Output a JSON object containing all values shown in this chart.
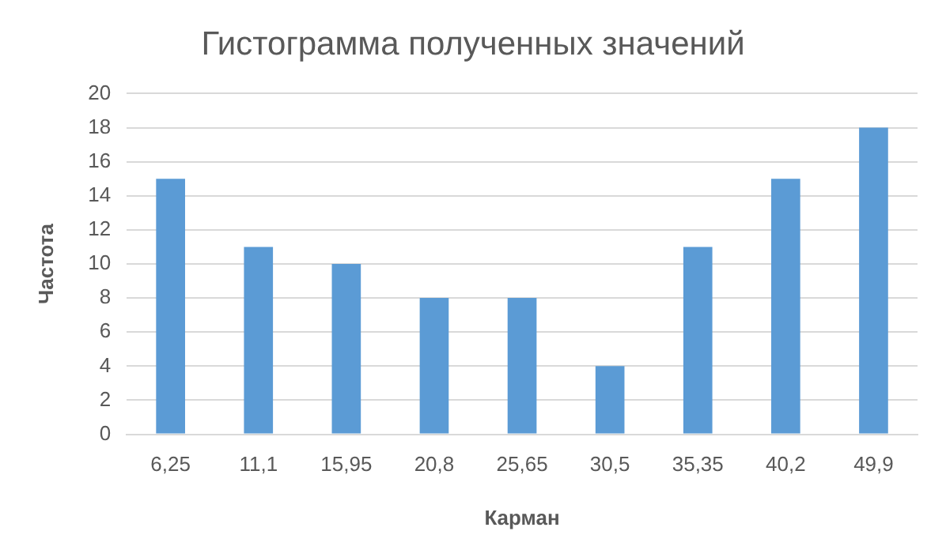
{
  "chart_data": {
    "type": "bar",
    "title": "Гистограмма полученных значений",
    "xlabel": "Карман",
    "ylabel": "Частота",
    "categories": [
      "6,25",
      "11,1",
      "15,95",
      "20,8",
      "25,65",
      "30,5",
      "35,35",
      "40,2",
      "49,9"
    ],
    "values": [
      15,
      11,
      10,
      8,
      8,
      4,
      11,
      15,
      18
    ],
    "color": "#5b9bd5",
    "ylim": [
      0,
      20
    ],
    "yticks": [
      0,
      2,
      4,
      6,
      8,
      10,
      12,
      14,
      16,
      18,
      20
    ],
    "grid": "y",
    "legend": false
  }
}
